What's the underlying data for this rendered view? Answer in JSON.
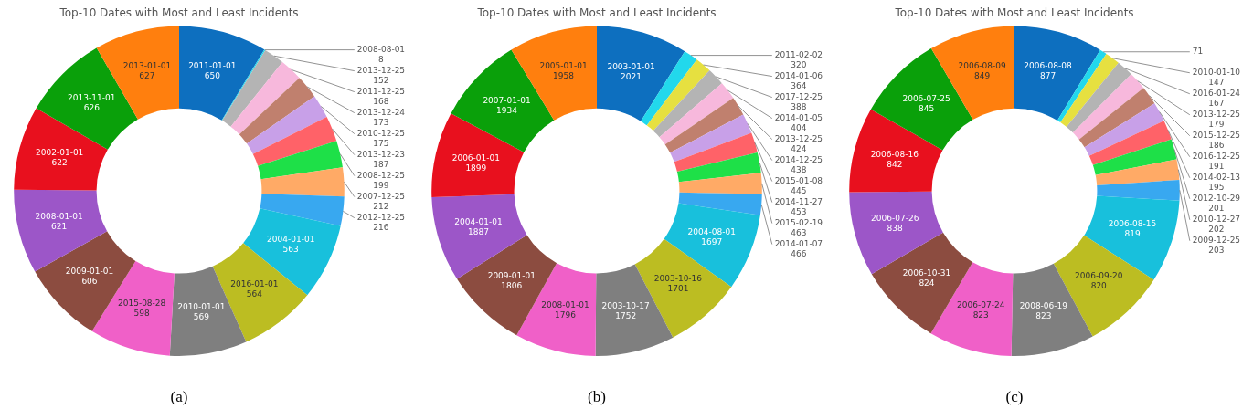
{
  "chart_data": [
    {
      "type": "donut",
      "title": "Top-10 Dates with Most and Least Incidents",
      "data_labels": true,
      "annotations": [
        "(a)"
      ],
      "categories": [
        "2011-01-01",
        "2008-08-01",
        "2013-12-25",
        "2011-12-25",
        "2013-12-24",
        "2010-12-25",
        "2013-12-23",
        "2008-12-25",
        "2007-12-25",
        "2012-12-25",
        "2004-01-01",
        "2016-01-01",
        "2010-01-01",
        "2015-08-28",
        "2009-01-01",
        "2008-01-01",
        "2002-01-01",
        "2013-11-01",
        "2013-01-01"
      ],
      "values": [
        650,
        8,
        152,
        168,
        173,
        175,
        187,
        199,
        212,
        216,
        563,
        564,
        569,
        598,
        606,
        621,
        622,
        626,
        627
      ],
      "colors": [
        "#0d6fbf",
        "#22d8ec",
        "#b4b4b4",
        "#f7b8dc",
        "#c0806e",
        "#c8a0e8",
        "#ff6268",
        "#1ee048",
        "#ffaa66",
        "#38a8f0",
        "#18c0dc",
        "#bcbd22",
        "#7f7f7f",
        "#f060c8",
        "#8c4c40",
        "#9c56c8",
        "#e8101e",
        "#0aa00a",
        "#ff7f0e"
      ]
    },
    {
      "type": "donut",
      "title": "Top-10 Dates with Most and Least Incidents",
      "data_labels": true,
      "annotations": [
        "(b)"
      ],
      "categories": [
        "2003-01-01",
        "2011-02-02",
        "2014-01-06",
        "2017-12-25",
        "2014-01-05",
        "2013-12-25",
        "2014-12-25",
        "2015-01-08",
        "2014-11-27",
        "2015-02-19",
        "2014-01-07",
        "2004-08-01",
        "2003-10-16",
        "2003-10-17",
        "2008-01-01",
        "2009-01-01",
        "2004-01-01",
        "2006-01-01",
        "2007-01-01",
        "2005-01-01"
      ],
      "values": [
        2021,
        320,
        364,
        388,
        404,
        424,
        438,
        445,
        453,
        463,
        466,
        1697,
        1701,
        1752,
        1796,
        1806,
        1887,
        1899,
        1934,
        1958
      ],
      "colors": [
        "#0d6fbf",
        "#22d8ec",
        "#e6e040",
        "#b4b4b4",
        "#f7b8dc",
        "#c0806e",
        "#c8a0e8",
        "#ff6268",
        "#1ee048",
        "#ffaa66",
        "#38a8f0",
        "#18c0dc",
        "#bcbd22",
        "#7f7f7f",
        "#f060c8",
        "#8c4c40",
        "#9c56c8",
        "#e8101e",
        "#0aa00a",
        "#ff7f0e"
      ]
    },
    {
      "type": "donut",
      "title": "Top-10 Dates with Most and Least Incidents",
      "data_labels": true,
      "annotations": [
        "(c)"
      ],
      "categories": [
        "2006-08-08",
        null,
        "2010-01-10",
        "2016-01-24",
        "2013-12-25",
        "2015-12-25",
        "2016-12-25",
        "2014-02-13",
        "2012-10-29",
        "2010-12-27",
        "2009-12-25",
        "2006-08-15",
        "2006-09-20",
        "2008-06-19",
        "2006-07-24",
        "2006-10-31",
        "2006-07-26",
        "2006-08-16",
        "2006-07-25",
        "2006-08-09"
      ],
      "values": [
        877,
        71,
        147,
        167,
        179,
        186,
        191,
        195,
        201,
        202,
        203,
        819,
        820,
        823,
        823,
        824,
        838,
        842,
        845,
        849
      ],
      "colors": [
        "#0d6fbf",
        "#22d8ec",
        "#e6e040",
        "#b4b4b4",
        "#f7b8dc",
        "#c0806e",
        "#c8a0e8",
        "#ff6268",
        "#1ee048",
        "#ffaa66",
        "#38a8f0",
        "#18c0dc",
        "#bcbd22",
        "#7f7f7f",
        "#f060c8",
        "#8c4c40",
        "#9c56c8",
        "#e8101e",
        "#0aa00a",
        "#ff7f0e"
      ]
    }
  ]
}
